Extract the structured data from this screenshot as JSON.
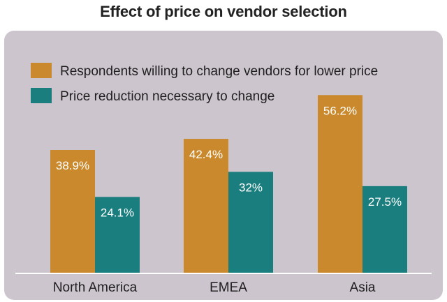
{
  "chart_data": {
    "type": "bar",
    "title": "Effect of price on vendor selection",
    "categories": [
      "North America",
      "EMEA",
      "Asia"
    ],
    "series": [
      {
        "name": "Respondents willing to change vendors for lower price",
        "values": [
          38.9,
          42.4,
          56.2
        ],
        "labels": [
          "38.9%",
          "42.4%",
          "56.2%"
        ],
        "color": "#c9892c"
      },
      {
        "name": "Price reduction necessary to change",
        "values": [
          24.1,
          32,
          27.5
        ],
        "labels": [
          "24.1%",
          "32%",
          "27.5%"
        ],
        "color": "#1a7d7e"
      }
    ],
    "xlabel": "",
    "ylabel": "",
    "ylim": [
      0,
      60
    ],
    "grid": false,
    "legend": "top-left"
  },
  "colors": {
    "panel_background": "#cdc5ce",
    "baseline": "#ffffff"
  }
}
